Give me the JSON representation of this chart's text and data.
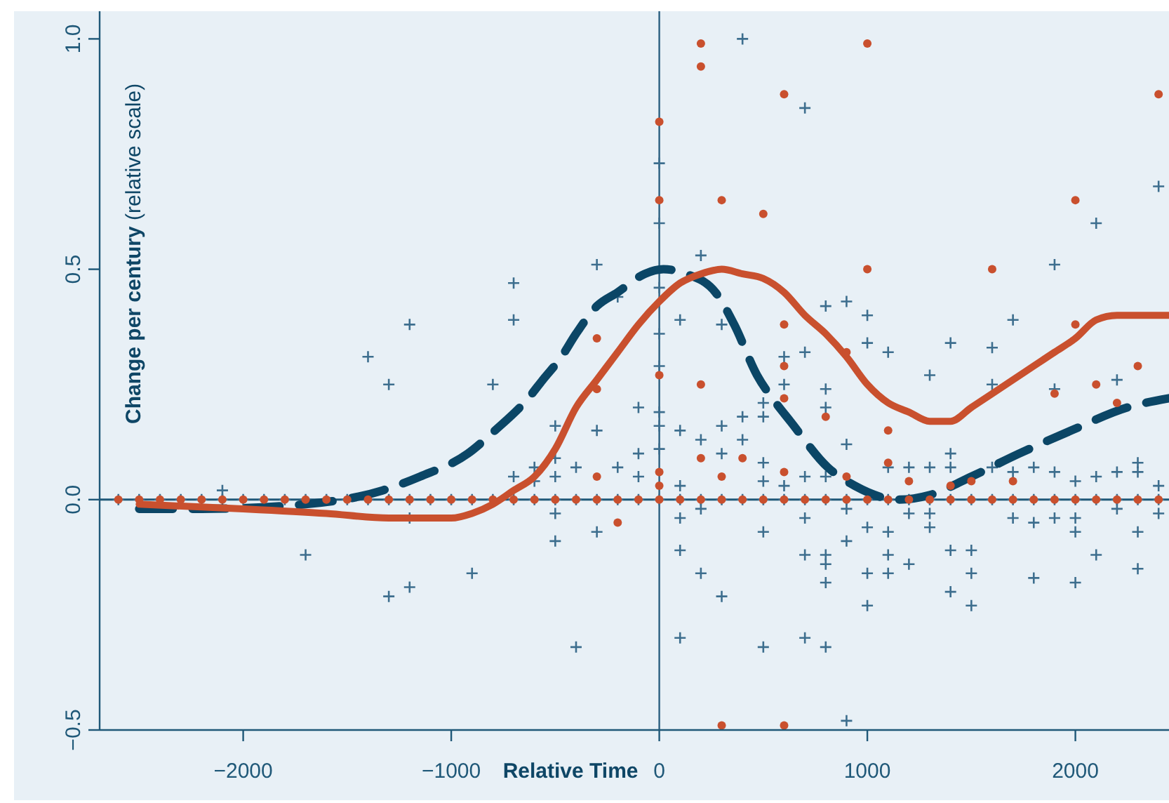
{
  "chart_data": {
    "type": "scatter",
    "xlabel": "Relative Time",
    "ylabel": "Change per century (relative scale)",
    "xlim": [
      -2690,
      2450
    ],
    "ylim": [
      -0.5,
      1.06
    ],
    "xticks": [
      {
        "value": -2000,
        "label": "−2000"
      },
      {
        "value": -1000,
        "label": "−1000"
      },
      0,
      1000,
      2000
    ],
    "yticks": [
      {
        "value": -0.5,
        "label": "−0.5"
      },
      {
        "value": 0,
        "label": "0.0"
      },
      {
        "value": 0.5,
        "label": "0.5"
      },
      {
        "value": 1,
        "label": "1.0"
      }
    ],
    "ref_lines": [
      {
        "axis": "x",
        "value": 0,
        "color": "#2a5f80"
      },
      {
        "axis": "y",
        "value": 0,
        "color": "#1f5878"
      }
    ],
    "series": [
      {
        "marker": "cross",
        "color": "#3d6e8e",
        "x": [
          -2600,
          -2500,
          -2400,
          -2300,
          -2200,
          -2100,
          -2000,
          -1900,
          -1800,
          -1700,
          -1600,
          -1500,
          -1400,
          -1300,
          -1200,
          -1100,
          -1000,
          -900,
          -800,
          -700,
          -600,
          -500,
          -400,
          -300,
          -200,
          -100,
          0,
          100,
          200,
          300,
          400,
          500,
          600,
          700,
          800,
          900,
          1000,
          1100,
          1200,
          1300,
          1400,
          1500,
          1600,
          1700,
          1800,
          1900,
          2000,
          2100,
          2200,
          2300,
          2400,
          -2100,
          -1700,
          -1400,
          -1300,
          -1300,
          -1200,
          -1200,
          -1200,
          -900,
          -800,
          -700,
          -700,
          -700,
          -600,
          -600,
          -500,
          -500,
          -500,
          -500,
          -500,
          -400,
          -400,
          -300,
          -300,
          -300,
          -200,
          -200,
          -100,
          -100,
          -100,
          0,
          0,
          0,
          0,
          0,
          0,
          0,
          0,
          100,
          100,
          100,
          100,
          100,
          100,
          200,
          200,
          200,
          200,
          300,
          300,
          300,
          300,
          400,
          400,
          400,
          500,
          500,
          500,
          500,
          500,
          500,
          600,
          600,
          600,
          700,
          700,
          700,
          700,
          700,
          700,
          800,
          800,
          800,
          800,
          800,
          800,
          800,
          800,
          900,
          900,
          900,
          900,
          900,
          1000,
          1000,
          1000,
          1000,
          1000,
          1100,
          1100,
          1100,
          1100,
          1100,
          1200,
          1200,
          1200,
          1300,
          1300,
          1300,
          1300,
          1400,
          1400,
          1400,
          1400,
          1400,
          1500,
          1500,
          1500,
          1600,
          1600,
          1600,
          1700,
          1700,
          1700,
          1800,
          1800,
          1800,
          1900,
          1900,
          1900,
          1900,
          2000,
          2000,
          2000,
          2000,
          2100,
          2100,
          2100,
          2200,
          2200,
          2200,
          2300,
          2300,
          2300,
          2300,
          2400,
          2400,
          2400
        ],
        "values": [
          0,
          0,
          0,
          0,
          0,
          0,
          0,
          0,
          0,
          0,
          0,
          0,
          0,
          0,
          0,
          0,
          0,
          0,
          0,
          0,
          0,
          0,
          0,
          0,
          0,
          0,
          0,
          0,
          0,
          0,
          0,
          0,
          0,
          0,
          0,
          0,
          0,
          0,
          0,
          0,
          0,
          0,
          0,
          0,
          0,
          0,
          0,
          0,
          0,
          0,
          0,
          0.02,
          -0.12,
          0.31,
          0.25,
          -0.21,
          0.38,
          -0.19,
          -0.04,
          -0.16,
          0.25,
          0.47,
          0.39,
          0.05,
          0.07,
          0.04,
          0.16,
          0.09,
          0.05,
          -0.03,
          -0.09,
          0.07,
          -0.32,
          0.51,
          0.15,
          -0.07,
          0.07,
          0.44,
          0.2,
          0.1,
          0.05,
          0.73,
          0.6,
          0.46,
          0.36,
          0.29,
          0.19,
          0.16,
          0.11,
          0.39,
          0.15,
          0.03,
          -0.04,
          -0.11,
          -0.3,
          0.53,
          0.13,
          -0.02,
          -0.16,
          0.38,
          0.16,
          0.1,
          -0.21,
          1.0,
          0.18,
          0.13,
          0.21,
          0.18,
          0.08,
          0.04,
          -0.07,
          -0.32,
          0.31,
          0.25,
          0.03,
          0.85,
          0.32,
          0.05,
          -0.04,
          -0.12,
          -0.3,
          0.42,
          0.24,
          0.2,
          0.05,
          -0.12,
          -0.14,
          -0.18,
          -0.32,
          0.43,
          0.12,
          -0.02,
          -0.09,
          -0.48,
          0.4,
          0.34,
          -0.06,
          -0.16,
          -0.23,
          0.32,
          0.07,
          -0.07,
          -0.12,
          -0.16,
          0.07,
          -0.03,
          -0.14,
          0.27,
          0.07,
          -0.03,
          -0.06,
          0.34,
          0.1,
          0.07,
          -0.11,
          -0.2,
          -0.11,
          -0.16,
          -0.23,
          0.33,
          0.25,
          0.07,
          0.39,
          0.06,
          -0.04,
          0.07,
          -0.05,
          -0.17,
          0.51,
          0.24,
          0.06,
          -0.04,
          0.04,
          -0.04,
          -0.07,
          -0.18,
          0.6,
          0.05,
          -0.12,
          0.26,
          0.06,
          -0.02,
          0.08,
          0.06,
          -0.07,
          -0.15,
          0.68,
          0.03,
          -0.03
        ]
      },
      {
        "type": "line",
        "line_style": "dashed",
        "color": "#0b4666",
        "x": [
          -2500,
          -2200,
          -1700,
          -1330,
          -1150,
          -920,
          -790,
          -630,
          -560,
          -470,
          -400,
          -300,
          -200,
          -70,
          20,
          130,
          270,
          360,
          470,
          560,
          630,
          810,
          940,
          1150,
          1300,
          1500,
          1730,
          1980,
          2250,
          2450
        ],
        "values": [
          -0.02,
          -0.02,
          -0.01,
          0.02,
          0.05,
          0.1,
          0.15,
          0.22,
          0.26,
          0.31,
          0.36,
          0.42,
          0.45,
          0.49,
          0.5,
          0.49,
          0.45,
          0.38,
          0.27,
          0.21,
          0.17,
          0.07,
          0.03,
          0.0,
          0.01,
          0.05,
          0.1,
          0.15,
          0.2,
          0.22
        ]
      },
      {
        "type": "line",
        "line_style": "solid",
        "color": "#c9502e",
        "x": [
          -2500,
          -2000,
          -1600,
          -1300,
          -1000,
          -900,
          -800,
          -700,
          -600,
          -500,
          -400,
          -300,
          -200,
          -100,
          0,
          100,
          200,
          300,
          400,
          500,
          600,
          700,
          800,
          900,
          1000,
          1100,
          1200,
          1300,
          1400,
          1500,
          1600,
          1700,
          1800,
          1900,
          2000,
          2100,
          2200,
          2300,
          2450
        ],
        "values": [
          -0.01,
          -0.02,
          -0.03,
          -0.04,
          -0.04,
          -0.03,
          -0.01,
          0.02,
          0.05,
          0.11,
          0.2,
          0.26,
          0.32,
          0.38,
          0.43,
          0.47,
          0.49,
          0.5,
          0.49,
          0.48,
          0.45,
          0.4,
          0.36,
          0.31,
          0.25,
          0.21,
          0.19,
          0.17,
          0.17,
          0.2,
          0.23,
          0.26,
          0.29,
          0.32,
          0.35,
          0.39,
          0.4,
          0.4,
          0.4
        ]
      },
      {
        "marker": "circle",
        "color": "#c9502e",
        "x": [
          -2600,
          -2500,
          -2400,
          -2300,
          -2200,
          -2100,
          -2000,
          -1900,
          -1800,
          -1700,
          -1600,
          -1500,
          -1400,
          -1300,
          -1200,
          -1100,
          -1000,
          -900,
          -800,
          -700,
          -600,
          -500,
          -400,
          -300,
          -200,
          -100,
          0,
          100,
          200,
          300,
          400,
          500,
          600,
          700,
          800,
          900,
          1000,
          1100,
          1200,
          1300,
          1400,
          1500,
          1600,
          1700,
          1800,
          1900,
          2000,
          2100,
          2200,
          2300,
          2400,
          200,
          200,
          1000,
          0,
          600,
          2400,
          0,
          300,
          500,
          2000,
          1000,
          1600,
          600,
          2000,
          -300,
          900,
          600,
          2300,
          -300,
          0,
          200,
          2100,
          1900,
          600,
          2200,
          800,
          400,
          200,
          300,
          600,
          1100,
          1100,
          900,
          1200,
          1400,
          1500,
          1700,
          0,
          0,
          -300,
          -200,
          300,
          600
        ],
        "values": [
          0,
          0,
          0,
          0,
          0,
          0,
          0,
          0,
          0,
          0,
          0,
          0,
          0,
          0,
          0,
          0,
          0,
          0,
          0,
          0,
          0,
          0,
          0,
          0,
          0,
          0,
          0,
          0,
          0,
          0,
          0,
          0,
          0,
          0,
          0,
          0,
          0,
          0,
          0,
          0,
          0,
          0,
          0,
          0,
          0,
          0,
          0,
          0,
          0,
          0,
          0,
          0.99,
          0.94,
          0.99,
          0.82,
          0.88,
          0.88,
          0.65,
          0.65,
          0.62,
          0.65,
          0.5,
          0.5,
          0.38,
          0.38,
          0.35,
          0.32,
          0.29,
          0.29,
          0.24,
          0.27,
          0.25,
          0.25,
          0.23,
          0.22,
          0.21,
          0.18,
          0.09,
          0.09,
          0.05,
          0.06,
          0.15,
          0.08,
          0.05,
          0.04,
          0.03,
          0.04,
          0.04,
          0.06,
          0.03,
          0.05,
          -0.05,
          -0.49,
          -0.49
        ]
      }
    ]
  }
}
